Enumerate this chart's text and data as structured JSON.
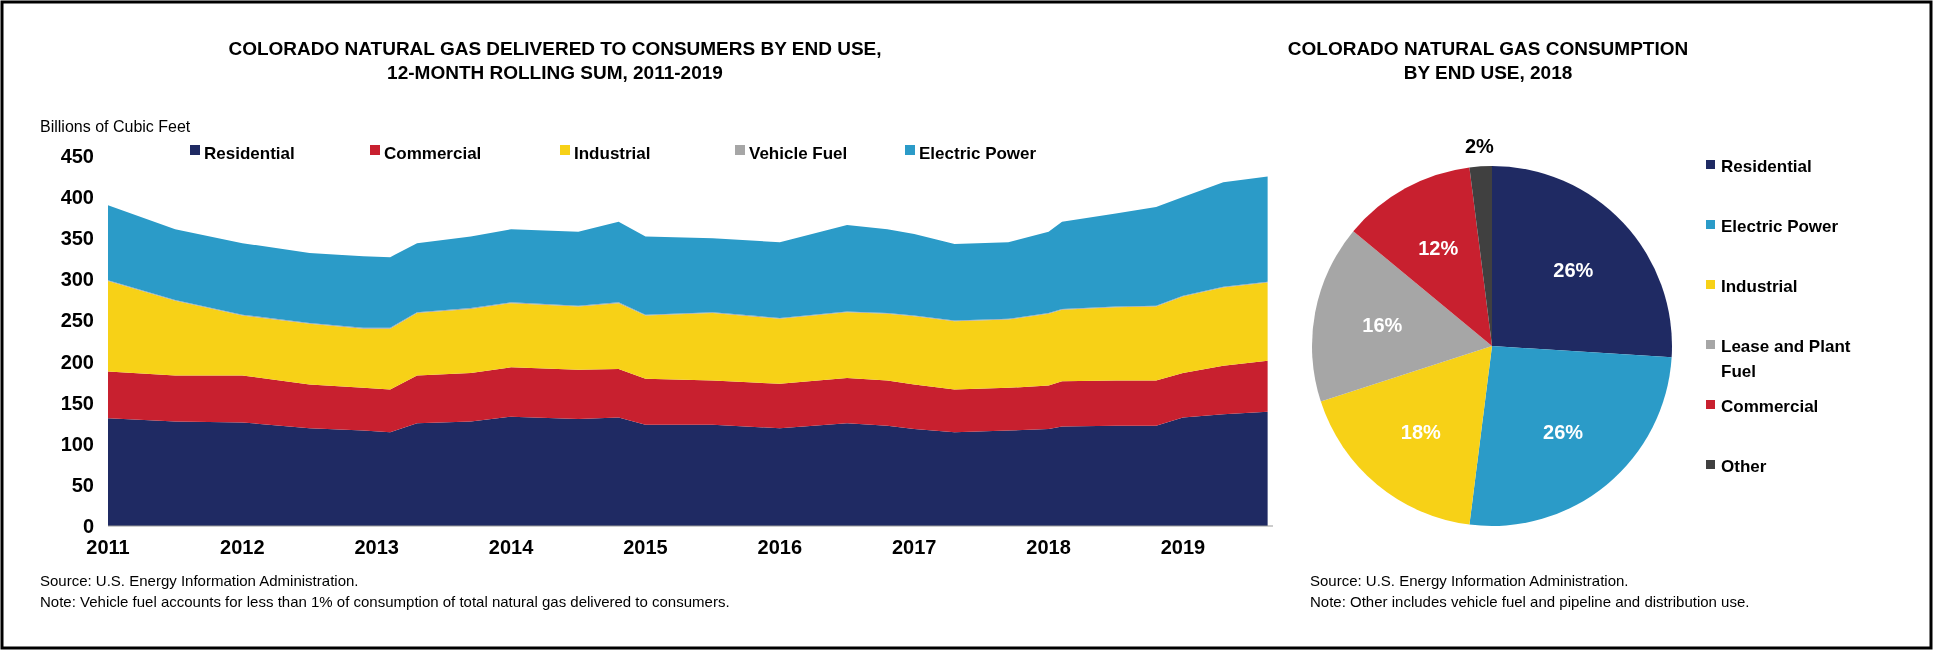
{
  "chart_data": [
    {
      "type": "area",
      "stacked": true,
      "title": "COLORADO NATURAL GAS DELIVERED TO CONSUMERS BY END USE, 12-MONTH ROLLING SUM, 2011-2019",
      "ylabel": "Billions of Cubic Feet",
      "x": [
        2011.0,
        2011.5,
        2012.0,
        2012.5,
        2012.9,
        2013.1,
        2013.3,
        2013.7,
        2014.0,
        2014.5,
        2014.8,
        2015.0,
        2015.5,
        2016.0,
        2016.5,
        2016.8,
        2017.0,
        2017.3,
        2017.7,
        2018.0,
        2018.1,
        2018.5,
        2018.8,
        2019.0,
        2019.3,
        2019.63
      ],
      "series": [
        {
          "name": "Residential",
          "color": "#1f2a63",
          "values": [
            131,
            127,
            126,
            119,
            116,
            114,
            125,
            127,
            133,
            130,
            132,
            123,
            123,
            119,
            125,
            122,
            118,
            114,
            116,
            118,
            121,
            122,
            122,
            132,
            136,
            139
          ]
        },
        {
          "name": "Commercial",
          "color": "#c8202f",
          "values": [
            57,
            56,
            57,
            53,
            52,
            52,
            58,
            59,
            60,
            60,
            59,
            56,
            54,
            54,
            55,
            55,
            54,
            52,
            52,
            53,
            55,
            55,
            55,
            54,
            59,
            62
          ]
        },
        {
          "name": "Industrial",
          "color": "#f7d117",
          "values": [
            110,
            91,
            73,
            74,
            72,
            74,
            76,
            78,
            78,
            77,
            80,
            77,
            82,
            79,
            80,
            81,
            83,
            83,
            83,
            87,
            87,
            89,
            90,
            93,
            95,
            95
          ]
        },
        {
          "name": "Vehicle Fuel",
          "color": "#a6a6a6",
          "values": [
            1,
            1,
            1,
            1,
            1,
            1,
            1,
            1,
            1,
            1,
            1,
            1,
            1,
            1,
            1,
            1,
            1,
            1,
            1,
            1,
            1,
            1,
            1,
            1,
            1,
            1
          ]
        },
        {
          "name": "Electric Power",
          "color": "#2b9bc8",
          "values": [
            91,
            86,
            87,
            85,
            87,
            86,
            84,
            87,
            89,
            90,
            98,
            95,
            90,
            92,
            105,
            102,
            99,
            93,
            93,
            99,
            106,
            113,
            120,
            120,
            127,
            128
          ]
        }
      ],
      "xlim": [
        2011,
        2019.67
      ],
      "xticks": [
        2011,
        2012,
        2013,
        2014,
        2015,
        2016,
        2017,
        2018,
        2019
      ],
      "ylim": [
        0,
        450
      ],
      "yticks": [
        0,
        50,
        100,
        150,
        200,
        250,
        300,
        350,
        400,
        450
      ],
      "grid": false,
      "legend": "top",
      "annotations": [
        "Source: U.S. Energy Information Administration.",
        "Note: Vehicle fuel accounts for less than 1% of consumption of total natural gas delivered to consumers."
      ]
    },
    {
      "type": "pie",
      "title": "COLORADO NATURAL GAS CONSUMPTION BY END USE, 2018",
      "categories": [
        "Residential",
        "Electric Power",
        "Industrial",
        "Lease and Plant Fuel",
        "Commercial",
        "Other"
      ],
      "values": [
        26,
        26,
        18,
        16,
        12,
        2
      ],
      "colors": [
        "#1f2a63",
        "#2b9bc8",
        "#f7d117",
        "#a6a6a6",
        "#c8202f",
        "#404040"
      ],
      "value_labels": [
        "26%",
        "26%",
        "18%",
        "16%",
        "12%",
        "2%"
      ],
      "legend": "right",
      "annotations": [
        "Source: U.S. Energy Information Administration.",
        "Note: Other includes vehicle fuel and pipeline and distribution use."
      ]
    }
  ]
}
